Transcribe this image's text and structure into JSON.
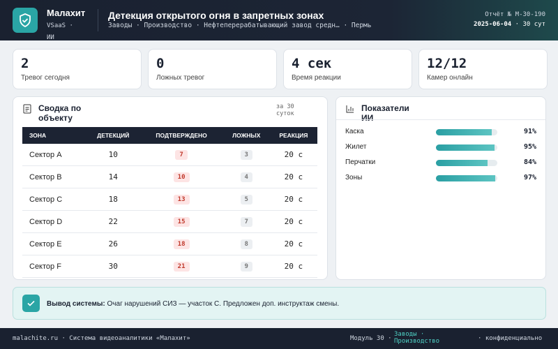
{
  "header": {
    "brand": "Малахит",
    "brand_sub": "VSaaS ·",
    "brand_sub2": "ИИ",
    "title": "Детекция открытого огня в запретных зонах",
    "breadcrumb": "Заводы · Производство · Нефтеперерабатывающий завод средн… · Пермь",
    "report": "Отчёт № M-30-190",
    "date": "2025-06-04",
    "period": "· 30 сут"
  },
  "kpis": [
    {
      "value": "2",
      "label": "Тревог сегодня"
    },
    {
      "value": "0",
      "label": "Ложных тревог"
    },
    {
      "value": "4 сек",
      "label": "Время реакции"
    },
    {
      "value": "12/12",
      "label": "Камер онлайн"
    }
  ],
  "table": {
    "title": "Сводка по объекту",
    "period": "за 30 суток",
    "columns": [
      "ЗОНА",
      "ДЕТЕКЦИЙ",
      "ПОДТВЕРЖДЕНО",
      "ЛОЖНЫХ",
      "РЕАКЦИЯ"
    ],
    "rows": [
      [
        "Сектор A",
        10,
        7,
        3,
        "20 с"
      ],
      [
        "Сектор B",
        14,
        10,
        4,
        "20 с"
      ],
      [
        "Сектор C",
        18,
        13,
        5,
        "20 с"
      ],
      [
        "Сектор D",
        22,
        15,
        7,
        "20 с"
      ],
      [
        "Сектор E",
        26,
        18,
        8,
        "20 с"
      ],
      [
        "Сектор F",
        30,
        21,
        9,
        "20 с"
      ]
    ]
  },
  "metrics": {
    "title": "Показатели ИИ",
    "items": [
      {
        "name": "Каска",
        "value": 91,
        "value_label": "91%"
      },
      {
        "name": "Жилет",
        "value": 95,
        "value_label": "95%"
      },
      {
        "name": "Перчатки",
        "value": 84,
        "value_label": "84%"
      },
      {
        "name": "Зоны",
        "value": 97,
        "value_label": "97%"
      }
    ]
  },
  "alert": {
    "label": "Вывод системы:",
    "text": "Очаг нарушений СИЗ — участок С. Предложен доп. инструктаж смены."
  },
  "footer": {
    "left": "malachite.ru · Система видеоаналитики «Малахит»",
    "module": "Модуль 30 ·",
    "path": "Заводы · Производство",
    "right": "· конфиденциально"
  }
}
